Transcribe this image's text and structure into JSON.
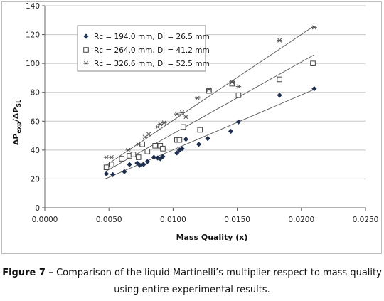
{
  "chart_data": {
    "type": "scatter",
    "xlabel": "Mass  Quality   (x)",
    "ylabel": "ΔPexp/ΔPSL",
    "xlim": [
      0,
      0.025
    ],
    "ylim": [
      0,
      140
    ],
    "x_ticks": [
      "0.0000",
      "0.0050",
      "0.0100",
      "0.0150",
      "0.0200",
      "0.0250"
    ],
    "y_ticks": [
      "0",
      "20",
      "40",
      "60",
      "80",
      "100",
      "120",
      "140"
    ],
    "grid": "horizontal",
    "legend_position": "top-left",
    "series": [
      {
        "name": "Rc = 194.0 mm, Di = 26.5 mm",
        "marker": "diamond",
        "color": "#1f2f4f",
        "points": [
          [
            0.0048,
            23.5
          ],
          [
            0.0053,
            23
          ],
          [
            0.0062,
            25
          ],
          [
            0.0066,
            30
          ],
          [
            0.0072,
            31
          ],
          [
            0.0074,
            29.5
          ],
          [
            0.0077,
            30
          ],
          [
            0.008,
            32
          ],
          [
            0.0085,
            35
          ],
          [
            0.0088,
            34.5
          ],
          [
            0.009,
            34
          ],
          [
            0.0092,
            35.5
          ],
          [
            0.0103,
            38
          ],
          [
            0.0105,
            40
          ],
          [
            0.0107,
            41
          ],
          [
            0.011,
            47.5
          ],
          [
            0.012,
            44
          ],
          [
            0.0127,
            48
          ],
          [
            0.0145,
            53
          ],
          [
            0.0151,
            59.5
          ],
          [
            0.0183,
            78
          ],
          [
            0.021,
            82.5
          ]
        ],
        "trend": [
          [
            0.0047,
            20
          ],
          [
            0.021,
            82
          ]
        ]
      },
      {
        "name": "Rc = 264.0 mm, Di = 41.2 mm",
        "marker": "square",
        "color": "#444444",
        "points": [
          [
            0.0048,
            28
          ],
          [
            0.0052,
            30
          ],
          [
            0.006,
            34
          ],
          [
            0.0066,
            36
          ],
          [
            0.0069,
            37
          ],
          [
            0.0073,
            35
          ],
          [
            0.0076,
            44
          ],
          [
            0.008,
            39
          ],
          [
            0.0086,
            43
          ],
          [
            0.009,
            43
          ],
          [
            0.0092,
            41
          ],
          [
            0.0103,
            47
          ],
          [
            0.0105,
            47
          ],
          [
            0.0108,
            56
          ],
          [
            0.0121,
            54
          ],
          [
            0.0128,
            81
          ],
          [
            0.0146,
            86
          ],
          [
            0.0151,
            78
          ],
          [
            0.0183,
            89
          ],
          [
            0.0209,
            100
          ]
        ],
        "trend": [
          [
            0.0047,
            25
          ],
          [
            0.021,
            106
          ]
        ]
      },
      {
        "name": "Rc = 326.6 mm, Di = 52.5 mm",
        "marker": "asterisk",
        "color": "#555555",
        "points": [
          [
            0.0048,
            35
          ],
          [
            0.0052,
            35
          ],
          [
            0.0065,
            40
          ],
          [
            0.0073,
            44
          ],
          [
            0.0078,
            49
          ],
          [
            0.0081,
            51
          ],
          [
            0.0088,
            56
          ],
          [
            0.009,
            58
          ],
          [
            0.0093,
            59
          ],
          [
            0.0103,
            65
          ],
          [
            0.0107,
            66
          ],
          [
            0.011,
            63
          ],
          [
            0.0119,
            76
          ],
          [
            0.0128,
            82
          ],
          [
            0.0146,
            87
          ],
          [
            0.0151,
            84
          ],
          [
            0.0183,
            116
          ],
          [
            0.021,
            125
          ]
        ],
        "trend": [
          [
            0.0047,
            29
          ],
          [
            0.021,
            126
          ]
        ]
      }
    ]
  },
  "caption": {
    "label": "Figure 7 –",
    "text": "Comparison of the liquid Martinelli’s multiplier respect to mass quality using entire experimental results."
  }
}
